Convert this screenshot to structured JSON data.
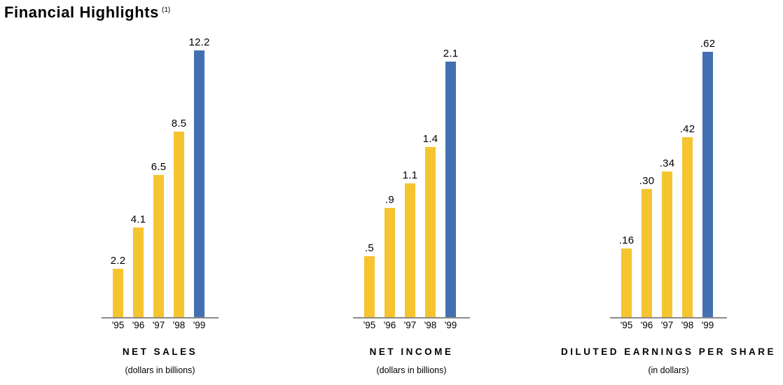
{
  "page": {
    "title": "Financial Highlights",
    "footnote_marker": "(1)"
  },
  "colors": {
    "bar_yellow": "#F5C42F",
    "bar_blue": "#4470B2",
    "axis_gray": "#8A8A8A",
    "text": "#000000"
  },
  "chart_data": [
    {
      "type": "bar",
      "title": "NET SALES",
      "subtitle": "(dollars in billions)",
      "categories": [
        "'95",
        "'96",
        "'97",
        "'98",
        "'99"
      ],
      "values": [
        2.2,
        4.1,
        6.5,
        8.5,
        12.2
      ],
      "labels": [
        "2.2",
        "4.1",
        "6.5",
        "8.5",
        "12.2"
      ],
      "highlight_index": 4,
      "ylim": [
        0,
        12.2
      ],
      "grid": false,
      "legend": false
    },
    {
      "type": "bar",
      "title": "NET INCOME",
      "subtitle": "(dollars in billions)",
      "categories": [
        "'95",
        "'96",
        "'97",
        "'98",
        "'99"
      ],
      "values": [
        0.5,
        0.9,
        1.1,
        1.4,
        2.1
      ],
      "labels": [
        ".5",
        ".9",
        "1.1",
        "1.4",
        "2.1"
      ],
      "highlight_index": 4,
      "ylim": [
        0,
        2.1
      ],
      "grid": false,
      "legend": false
    },
    {
      "type": "bar",
      "title": "DILUTED EARNINGS PER SHARE",
      "subtitle": "(in dollars)",
      "categories": [
        "'95",
        "'96",
        "'97",
        "'98",
        "'99"
      ],
      "values": [
        0.16,
        0.3,
        0.34,
        0.42,
        0.62
      ],
      "labels": [
        ".16",
        ".30",
        ".34",
        ".42",
        ".62"
      ],
      "highlight_index": 4,
      "ylim": [
        0,
        0.62
      ],
      "grid": false,
      "legend": false
    }
  ]
}
